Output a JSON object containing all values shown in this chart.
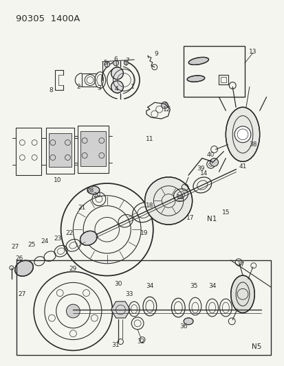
{
  "title_code": "90305  1400A",
  "bg_color": "#f5f5f0",
  "lc": "#2a2a2a",
  "lw": 0.65,
  "fs": 6.5,
  "title_fs": 9.5
}
